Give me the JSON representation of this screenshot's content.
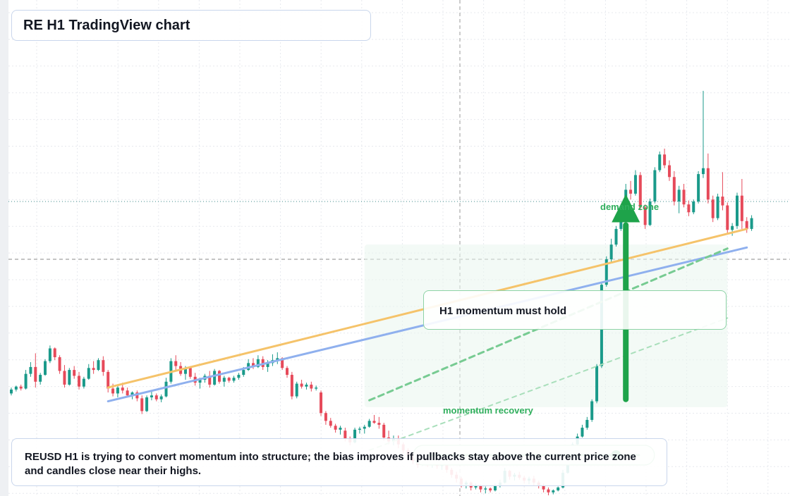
{
  "title": "RE H1 TradingView chart",
  "annotations": {
    "demand_label": "demand zone",
    "hold_label": "H1 momentum must hold",
    "recovery_label": "momentum recovery",
    "note": "REUSD H1 is trying to convert momentum into structure; the bias improves if pullbacks stay above the current price zone and candles close near their highs."
  },
  "colors": {
    "bull": "#1a9a8a",
    "bear": "#e64a5a",
    "trend_orange": "#f5c36a",
    "trend_blue": "#8fb0ee",
    "accent_green": "#1ea34a",
    "guide_green": "#77cb92"
  },
  "chart_data": {
    "type": "candlestick",
    "timeframe": "H1",
    "symbol": "REUSD",
    "price_scale": "unlabeled; values in relative price units",
    "series": [
      {
        "name": "REUSD",
        "candles": [
          [
            20.4,
            21.0,
            20.2,
            20.8
          ],
          [
            20.8,
            21.2,
            20.6,
            21.1
          ],
          [
            21.1,
            21.3,
            20.7,
            20.9
          ],
          [
            20.9,
            22.8,
            20.8,
            22.4
          ],
          [
            22.4,
            23.6,
            22.1,
            23.1
          ],
          [
            23.1,
            24.5,
            21.0,
            21.6
          ],
          [
            21.6,
            22.5,
            21.3,
            22.3
          ],
          [
            22.3,
            23.9,
            22.2,
            23.7
          ],
          [
            23.7,
            25.3,
            23.5,
            25.0
          ],
          [
            25.0,
            25.1,
            23.8,
            24.1
          ],
          [
            24.1,
            24.3,
            22.4,
            22.7
          ],
          [
            22.7,
            23.3,
            21.0,
            21.3
          ],
          [
            21.3,
            23.0,
            21.2,
            22.8
          ],
          [
            22.8,
            23.2,
            21.9,
            22.2
          ],
          [
            22.2,
            22.6,
            20.8,
            21.1
          ],
          [
            21.1,
            22.1,
            20.9,
            21.9
          ],
          [
            21.9,
            23.4,
            21.8,
            23.0
          ],
          [
            23.0,
            23.7,
            22.4,
            22.8
          ],
          [
            22.8,
            24.0,
            22.7,
            23.8
          ],
          [
            23.8,
            24.2,
            22.2,
            22.6
          ],
          [
            22.6,
            22.8,
            20.5,
            20.9
          ],
          [
            20.9,
            21.4,
            20.1,
            20.4
          ],
          [
            20.4,
            21.3,
            20.0,
            21.0
          ],
          [
            21.0,
            21.5,
            20.4,
            20.7
          ],
          [
            20.7,
            21.0,
            20.0,
            20.2
          ],
          [
            20.2,
            20.6,
            19.8,
            20.5
          ],
          [
            20.5,
            20.7,
            19.6,
            19.9
          ],
          [
            19.9,
            20.2,
            18.3,
            18.6
          ],
          [
            18.6,
            20.2,
            18.5,
            20.0
          ],
          [
            20.0,
            20.6,
            19.7,
            20.2
          ],
          [
            20.2,
            20.4,
            19.6,
            19.8
          ],
          [
            19.8,
            20.3,
            19.5,
            20.1
          ],
          [
            20.1,
            22.0,
            20.0,
            21.6
          ],
          [
            21.6,
            24.0,
            21.4,
            23.7
          ],
          [
            23.7,
            24.3,
            22.8,
            23.2
          ],
          [
            23.2,
            23.6,
            22.2,
            22.4
          ],
          [
            22.4,
            23.2,
            21.8,
            23.0
          ],
          [
            23.0,
            23.2,
            21.9,
            22.1
          ],
          [
            22.1,
            22.5,
            21.2,
            21.5
          ],
          [
            21.5,
            22.0,
            20.9,
            21.8
          ],
          [
            21.8,
            22.4,
            21.5,
            22.2
          ],
          [
            22.2,
            22.7,
            21.0,
            21.3
          ],
          [
            21.3,
            22.9,
            21.2,
            22.7
          ],
          [
            22.7,
            22.8,
            21.4,
            21.6
          ],
          [
            21.6,
            22.2,
            21.1,
            22.0
          ],
          [
            22.0,
            22.1,
            21.5,
            21.7
          ],
          [
            21.7,
            22.2,
            21.5,
            22.0
          ],
          [
            22.0,
            22.5,
            21.8,
            22.3
          ],
          [
            22.3,
            23.1,
            22.1,
            22.8
          ],
          [
            22.8,
            23.9,
            22.7,
            23.5
          ],
          [
            23.5,
            24.0,
            22.9,
            23.1
          ],
          [
            23.1,
            24.3,
            23.0,
            23.9
          ],
          [
            23.9,
            24.2,
            22.8,
            23.1
          ],
          [
            23.1,
            23.8,
            22.6,
            23.5
          ],
          [
            23.5,
            24.4,
            23.2,
            23.8
          ],
          [
            23.8,
            24.6,
            23.4,
            24.0
          ],
          [
            24.0,
            24.1,
            22.8,
            23.0
          ],
          [
            23.0,
            23.2,
            22.0,
            22.3
          ],
          [
            22.3,
            22.6,
            19.8,
            20.1
          ],
          [
            20.1,
            21.6,
            19.9,
            21.4
          ],
          [
            21.4,
            21.8,
            20.9,
            21.1
          ],
          [
            21.1,
            21.5,
            20.8,
            21.3
          ],
          [
            21.3,
            21.6,
            20.6,
            20.9
          ],
          [
            20.9,
            21.2,
            20.7,
            21.0
          ],
          [
            20.5,
            20.7,
            18.1,
            18.4
          ],
          [
            18.4,
            18.6,
            17.2,
            17.6
          ],
          [
            17.6,
            17.9,
            16.9,
            17.1
          ],
          [
            17.1,
            17.3,
            16.4,
            16.7
          ],
          [
            16.7,
            17.1,
            16.2,
            16.9
          ],
          [
            16.6,
            16.9,
            15.5,
            15.8
          ],
          [
            15.8,
            16.0,
            15.1,
            15.4
          ],
          [
            15.4,
            16.9,
            15.3,
            16.7
          ],
          [
            16.7,
            17.0,
            16.3,
            16.8
          ],
          [
            16.8,
            17.2,
            16.3,
            17.0
          ],
          [
            17.0,
            17.8,
            16.9,
            17.6
          ],
          [
            17.6,
            18.2,
            17.3,
            17.4
          ],
          [
            17.4,
            18.0,
            16.8,
            17.2
          ],
          [
            17.2,
            17.4,
            15.6,
            15.9
          ],
          [
            15.9,
            16.6,
            15.2,
            15.5
          ],
          [
            15.5,
            16.1,
            15.1,
            15.8
          ],
          [
            15.8,
            16.1,
            14.8,
            15.2
          ],
          [
            15.2,
            15.4,
            14.3,
            14.6
          ],
          [
            14.6,
            14.8,
            13.8,
            14.1
          ],
          [
            14.1,
            14.3,
            13.2,
            13.5
          ],
          [
            13.5,
            13.7,
            12.8,
            13.1
          ],
          [
            13.1,
            13.9,
            13.0,
            13.7
          ],
          [
            13.7,
            13.8,
            12.9,
            13.2
          ],
          [
            13.2,
            13.6,
            12.8,
            13.4
          ],
          [
            13.4,
            13.5,
            12.7,
            13.0
          ],
          [
            13.0,
            13.3,
            12.6,
            13.2
          ],
          [
            13.2,
            13.4,
            12.3,
            12.6
          ],
          [
            12.6,
            12.8,
            11.8,
            12.1
          ],
          [
            12.1,
            12.4,
            11.3,
            11.7
          ],
          [
            11.7,
            11.9,
            10.8,
            11.1
          ],
          [
            11.1,
            11.5,
            10.7,
            11.3
          ],
          [
            11.3,
            11.4,
            10.5,
            10.8
          ],
          [
            10.8,
            11.2,
            10.6,
            11.0
          ],
          [
            11.0,
            11.1,
            10.3,
            10.6
          ],
          [
            10.6,
            10.9,
            10.2,
            10.7
          ],
          [
            10.7,
            10.8,
            10.3,
            10.5
          ],
          [
            10.5,
            11.2,
            10.4,
            11.0
          ],
          [
            11.0,
            11.6,
            10.8,
            11.3
          ],
          [
            11.3,
            12.8,
            11.2,
            12.5
          ],
          [
            12.5,
            12.6,
            11.6,
            11.9
          ],
          [
            11.9,
            12.3,
            11.5,
            12.1
          ],
          [
            12.1,
            12.4,
            11.6,
            11.8
          ],
          [
            11.8,
            12.0,
            11.2,
            11.5
          ],
          [
            11.5,
            11.9,
            11.1,
            11.7
          ],
          [
            11.7,
            12.0,
            11.0,
            11.3
          ],
          [
            11.3,
            11.5,
            10.7,
            11.0
          ],
          [
            11.0,
            11.2,
            10.3,
            10.6
          ],
          [
            10.6,
            10.8,
            10.0,
            10.3
          ],
          [
            10.3,
            10.6,
            10.1,
            10.5
          ],
          [
            10.5,
            10.9,
            10.4,
            10.8
          ],
          [
            10.8,
            12.6,
            10.7,
            12.3
          ],
          [
            12.3,
            14.2,
            12.2,
            13.9
          ],
          [
            13.9,
            15.4,
            13.8,
            15.2
          ],
          [
            15.2,
            16.3,
            15.0,
            16.0
          ],
          [
            16.0,
            17.2,
            15.9,
            16.9
          ],
          [
            16.9,
            18.0,
            16.7,
            17.7
          ],
          [
            17.7,
            19.8,
            17.5,
            19.6
          ],
          [
            19.6,
            23.4,
            19.4,
            23.2
          ],
          [
            23.2,
            31.8,
            23.0,
            31.5
          ],
          [
            31.5,
            34.4,
            31.3,
            34.1
          ],
          [
            34.1,
            36.2,
            33.8,
            35.6
          ],
          [
            35.6,
            37.5,
            35.4,
            37.2
          ],
          [
            37.2,
            39.0,
            37.0,
            38.6
          ],
          [
            38.6,
            41.8,
            38.4,
            41.2
          ],
          [
            41.2,
            42.1,
            40.2,
            40.8
          ],
          [
            40.8,
            43.2,
            40.6,
            42.7
          ],
          [
            42.7,
            43.0,
            39.1,
            39.4
          ],
          [
            39.4,
            39.7,
            37.2,
            37.6
          ],
          [
            37.6,
            40.3,
            37.5,
            40.0
          ],
          [
            40.0,
            43.5,
            39.8,
            43.2
          ],
          [
            43.2,
            45.1,
            43.0,
            44.8
          ],
          [
            44.8,
            45.4,
            43.4,
            43.7
          ],
          [
            43.7,
            44.2,
            42.1,
            42.5
          ],
          [
            42.5,
            43.1,
            39.6,
            40.0
          ],
          [
            40.0,
            41.6,
            38.8,
            41.2
          ],
          [
            41.2,
            41.8,
            39.4,
            39.7
          ],
          [
            39.7,
            40.1,
            38.5,
            38.9
          ],
          [
            38.9,
            40.2,
            38.7,
            40.0
          ],
          [
            40.0,
            43.1,
            39.8,
            42.8
          ],
          [
            42.8,
            51.3,
            42.4,
            43.4
          ],
          [
            43.4,
            44.9,
            39.8,
            40.2
          ],
          [
            40.2,
            40.6,
            37.9,
            38.3
          ],
          [
            38.3,
            40.8,
            38.1,
            40.5
          ],
          [
            40.5,
            43.0,
            39.1,
            39.6
          ],
          [
            39.6,
            39.9,
            36.7,
            37.1
          ],
          [
            37.1,
            37.8,
            36.5,
            37.5
          ],
          [
            37.5,
            40.9,
            37.2,
            40.6
          ],
          [
            40.6,
            42.3,
            37.2,
            38.0
          ],
          [
            38.0,
            38.4,
            36.8,
            37.2
          ],
          [
            37.2,
            38.6,
            37.0,
            38.3
          ]
        ]
      }
    ],
    "lines": [
      {
        "name": "orange trendline",
        "color": "orange",
        "from": {
          "i": 20,
          "p": 21.0
        },
        "to": {
          "i": 152,
          "p": 37.2
        }
      },
      {
        "name": "blue trendline",
        "color": "blue",
        "from": {
          "i": 20,
          "p": 19.6
        },
        "to": {
          "i": 152,
          "p": 35.3
        }
      },
      {
        "name": "green dashed guide",
        "color": "green",
        "from": {
          "i": 74,
          "p": 19.7
        },
        "to": {
          "i": 148,
          "p": 35.2
        }
      },
      {
        "name": "light green dashed guide",
        "color": "green",
        "from": {
          "i": 74,
          "p": 14.6
        },
        "to": {
          "i": 148,
          "p": 28.1
        }
      }
    ],
    "arrow": {
      "i": 127,
      "from_p": 19.8,
      "to_p": 38.6
    },
    "recovery_marker": {
      "from_i": 86,
      "to_i": 130,
      "p": 14.1,
      "dot_i": 125
    },
    "demand_zone": {
      "from_i": 73,
      "to_i": 148,
      "low_p": 19.0,
      "high_p": 35.6
    },
    "current_price_p": 40.0,
    "level_p": 34.1,
    "grid": true,
    "legend": "none"
  }
}
